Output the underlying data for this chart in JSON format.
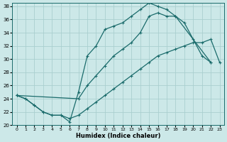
{
  "xlabel": "Humidex (Indice chaleur)",
  "ylabel": "",
  "xlim": [
    -0.5,
    23.5
  ],
  "ylim": [
    20,
    38.5
  ],
  "xticks": [
    0,
    1,
    2,
    3,
    4,
    5,
    6,
    7,
    8,
    9,
    10,
    11,
    12,
    13,
    14,
    15,
    16,
    17,
    18,
    19,
    20,
    21,
    22,
    23
  ],
  "yticks": [
    20,
    22,
    24,
    26,
    28,
    30,
    32,
    34,
    36,
    38
  ],
  "bg_color": "#cce8e8",
  "grid_color": "#aacfcf",
  "line_color": "#1a6b6b",
  "line1_x": [
    0,
    1,
    2,
    3,
    4,
    5,
    6,
    7,
    8,
    9,
    10,
    11,
    12,
    13,
    14,
    15,
    16,
    17,
    18,
    19,
    20,
    21,
    22
  ],
  "line1_y": [
    24.5,
    24.0,
    23.0,
    22.0,
    21.5,
    21.5,
    20.5,
    25.0,
    30.5,
    32.0,
    34.5,
    35.0,
    35.5,
    36.5,
    37.5,
    38.5,
    38.0,
    37.5,
    36.5,
    35.5,
    33.0,
    30.5,
    29.5
  ],
  "line2_x": [
    0,
    7,
    8,
    9,
    10,
    11,
    12,
    13,
    14,
    15,
    16,
    17,
    18,
    22
  ],
  "line2_y": [
    24.5,
    24.0,
    26.0,
    27.5,
    29.0,
    30.5,
    31.5,
    32.5,
    34.0,
    36.5,
    37.0,
    36.5,
    36.5,
    29.5
  ],
  "line3_x": [
    0,
    1,
    2,
    3,
    4,
    5,
    6,
    7,
    8,
    9,
    10,
    11,
    12,
    13,
    14,
    15,
    16,
    17,
    18,
    19,
    20,
    21,
    22,
    23
  ],
  "line3_y": [
    24.5,
    24.0,
    23.0,
    22.0,
    21.5,
    21.5,
    21.0,
    21.5,
    22.5,
    23.5,
    24.5,
    25.5,
    26.5,
    27.5,
    28.5,
    29.5,
    30.5,
    31.0,
    31.5,
    32.0,
    32.5,
    32.5,
    33.0,
    29.5
  ]
}
